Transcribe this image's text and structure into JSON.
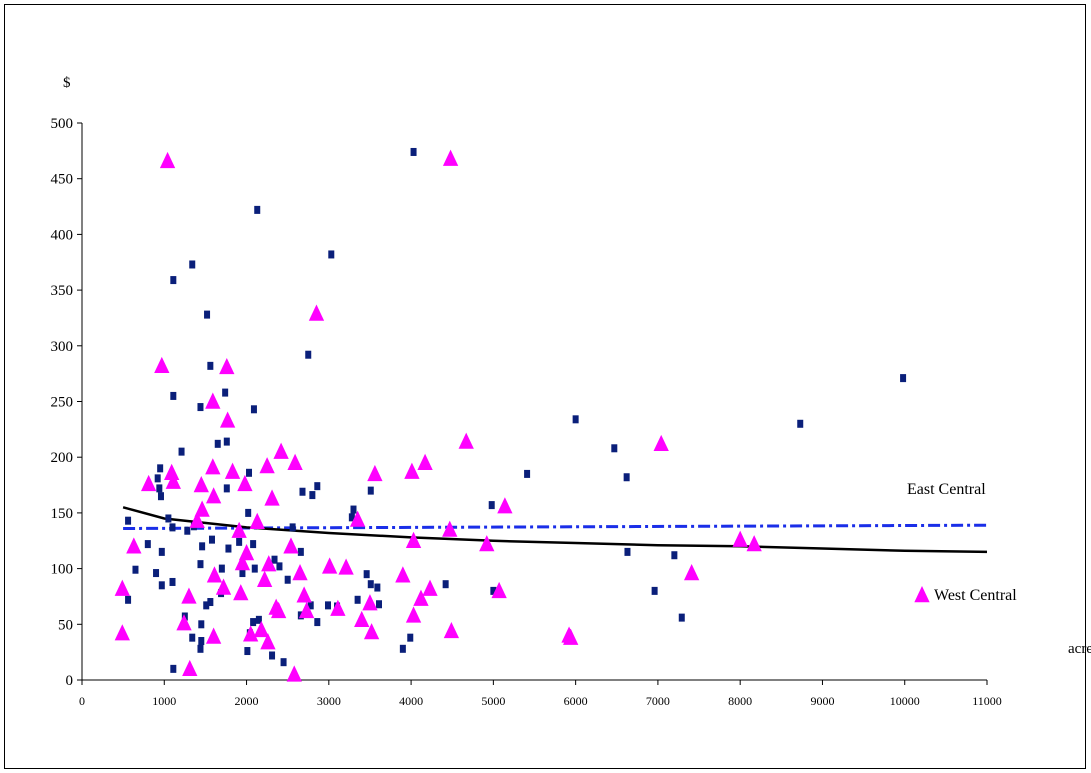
{
  "chart_data": {
    "type": "scatter",
    "ylabel": "$",
    "xlabel": "acre",
    "xlim": [
      0,
      11000
    ],
    "ylim": [
      0,
      500
    ],
    "x_ticks": [
      "0",
      "1000",
      "2000",
      "3000",
      "4000",
      "5000",
      "6000",
      "7000",
      "8000",
      "9000",
      "10000",
      "11000"
    ],
    "y_ticks": [
      "0",
      "50",
      "100",
      "150",
      "200",
      "250",
      "300",
      "350",
      "400",
      "450",
      "500"
    ],
    "grid": false,
    "colors": {
      "east_marker": "#0a1f7a",
      "west_marker": "#ff00ff",
      "east_trend": "#1a2ee8",
      "west_trend": "#000000"
    },
    "annotations": {
      "east": "East Central",
      "west": "West Central"
    },
    "series": [
      {
        "name": "East Central",
        "marker": "square",
        "points": [
          [
            560,
            143
          ],
          [
            560,
            72
          ],
          [
            650,
            99
          ],
          [
            800,
            122
          ],
          [
            900,
            96
          ],
          [
            920,
            181
          ],
          [
            940,
            172
          ],
          [
            950,
            190
          ],
          [
            960,
            165
          ],
          [
            970,
            115
          ],
          [
            970,
            85
          ],
          [
            1050,
            145
          ],
          [
            1100,
            137
          ],
          [
            1100,
            88
          ],
          [
            1110,
            255
          ],
          [
            1110,
            359
          ],
          [
            1110,
            10
          ],
          [
            1210,
            205
          ],
          [
            1250,
            57
          ],
          [
            1280,
            134
          ],
          [
            1340,
            373
          ],
          [
            1340,
            38
          ],
          [
            1360,
            138
          ],
          [
            1440,
            245
          ],
          [
            1440,
            28
          ],
          [
            1440,
            104
          ],
          [
            1460,
            120
          ],
          [
            1450,
            35
          ],
          [
            1450,
            50
          ],
          [
            1520,
            328
          ],
          [
            1510,
            67
          ],
          [
            1560,
            282
          ],
          [
            1560,
            70
          ],
          [
            1580,
            126
          ],
          [
            1650,
            212
          ],
          [
            1690,
            78
          ],
          [
            1700,
            100
          ],
          [
            1740,
            258
          ],
          [
            1760,
            214
          ],
          [
            1760,
            172
          ],
          [
            1780,
            118
          ],
          [
            1910,
            124
          ],
          [
            1950,
            96
          ],
          [
            2010,
            26
          ],
          [
            2020,
            150
          ],
          [
            2030,
            186
          ],
          [
            2040,
            42
          ],
          [
            2090,
            243
          ],
          [
            2080,
            52
          ],
          [
            2080,
            122
          ],
          [
            2100,
            100
          ],
          [
            2130,
            422
          ],
          [
            2150,
            54
          ],
          [
            2310,
            22
          ],
          [
            2340,
            108
          ],
          [
            2360,
            64
          ],
          [
            2400,
            102
          ],
          [
            2450,
            16
          ],
          [
            2500,
            90
          ],
          [
            2560,
            137
          ],
          [
            2660,
            115
          ],
          [
            2660,
            58
          ],
          [
            2680,
            169
          ],
          [
            2750,
            292
          ],
          [
            2780,
            67
          ],
          [
            2800,
            166
          ],
          [
            2860,
            174
          ],
          [
            2860,
            52
          ],
          [
            2990,
            67
          ],
          [
            3030,
            382
          ],
          [
            3100,
            66
          ],
          [
            3280,
            146
          ],
          [
            3300,
            153
          ],
          [
            3350,
            72
          ],
          [
            3460,
            95
          ],
          [
            3510,
            86
          ],
          [
            3510,
            170
          ],
          [
            3590,
            83
          ],
          [
            3610,
            68
          ],
          [
            3900,
            28
          ],
          [
            3990,
            38
          ],
          [
            4030,
            474
          ],
          [
            4420,
            86
          ],
          [
            4980,
            157
          ],
          [
            5000,
            80
          ],
          [
            5410,
            185
          ],
          [
            6000,
            234
          ],
          [
            6470,
            208
          ],
          [
            6620,
            182
          ],
          [
            6630,
            115
          ],
          [
            6960,
            80
          ],
          [
            7200,
            112
          ],
          [
            7290,
            56
          ],
          [
            8730,
            230
          ],
          [
            9980,
            271
          ]
        ]
      },
      {
        "name": "West Central",
        "marker": "triangle",
        "points": [
          [
            490,
            82
          ],
          [
            490,
            42
          ],
          [
            630,
            120
          ],
          [
            810,
            176
          ],
          [
            970,
            282
          ],
          [
            1040,
            466
          ],
          [
            1090,
            186
          ],
          [
            1110,
            178
          ],
          [
            1240,
            51
          ],
          [
            1300,
            75
          ],
          [
            1310,
            10
          ],
          [
            1400,
            143
          ],
          [
            1450,
            175
          ],
          [
            1460,
            153
          ],
          [
            1590,
            250
          ],
          [
            1590,
            191
          ],
          [
            1600,
            165
          ],
          [
            1610,
            94
          ],
          [
            1600,
            39
          ],
          [
            1720,
            83
          ],
          [
            1760,
            281
          ],
          [
            1770,
            233
          ],
          [
            1830,
            187
          ],
          [
            1910,
            134
          ],
          [
            1930,
            78
          ],
          [
            1950,
            105
          ],
          [
            1980,
            176
          ],
          [
            2000,
            114
          ],
          [
            2050,
            41
          ],
          [
            2130,
            142
          ],
          [
            2180,
            45
          ],
          [
            2220,
            90
          ],
          [
            2250,
            192
          ],
          [
            2260,
            34
          ],
          [
            2270,
            104
          ],
          [
            2310,
            163
          ],
          [
            2360,
            65
          ],
          [
            2390,
            62
          ],
          [
            2420,
            205
          ],
          [
            2540,
            120
          ],
          [
            2580,
            5
          ],
          [
            2590,
            195
          ],
          [
            2650,
            96
          ],
          [
            2700,
            76
          ],
          [
            2730,
            62
          ],
          [
            2850,
            329
          ],
          [
            3010,
            102
          ],
          [
            3110,
            64
          ],
          [
            3210,
            101
          ],
          [
            3350,
            144
          ],
          [
            3400,
            54
          ],
          [
            3500,
            69
          ],
          [
            3520,
            43
          ],
          [
            3560,
            185
          ],
          [
            3900,
            94
          ],
          [
            4010,
            187
          ],
          [
            4030,
            125
          ],
          [
            4030,
            58
          ],
          [
            4120,
            73
          ],
          [
            4170,
            195
          ],
          [
            4230,
            82
          ],
          [
            4480,
            468
          ],
          [
            4470,
            135
          ],
          [
            4490,
            44
          ],
          [
            4920,
            122
          ],
          [
            5070,
            80
          ],
          [
            5140,
            156
          ],
          [
            4670,
            214
          ],
          [
            5920,
            40
          ],
          [
            5940,
            38
          ],
          [
            7040,
            212
          ],
          [
            7410,
            96
          ],
          [
            8000,
            126
          ],
          [
            8170,
            122
          ]
        ]
      },
      {
        "name": "East Central trend",
        "style": "dash-dot",
        "x": [
          500,
          11000
        ],
        "y": [
          136,
          139
        ]
      },
      {
        "name": "West Central trend",
        "style": "solid",
        "x": [
          500,
          1000,
          2000,
          3000,
          4000,
          5000,
          6000,
          7000,
          8000,
          9000,
          10000,
          11000
        ],
        "y": [
          155,
          145,
          137,
          132,
          128,
          125,
          123,
          121,
          120,
          118,
          116,
          115
        ]
      }
    ]
  }
}
